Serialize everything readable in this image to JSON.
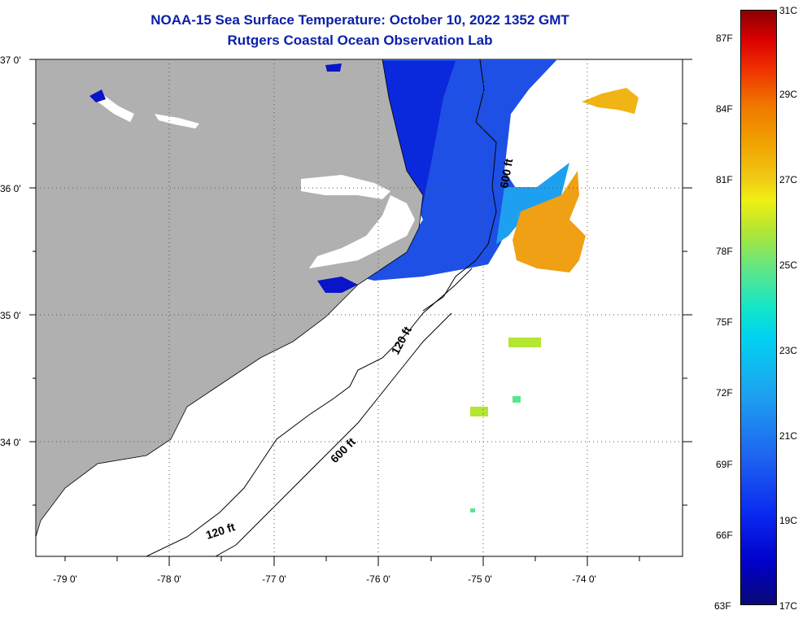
{
  "header": {
    "title": "NOAA-15 Sea Surface Temperature:  October 10, 2022 1352 GMT",
    "subtitle": "Rutgers Coastal Ocean Observation Lab"
  },
  "map": {
    "lat_labels": [
      "37 0'",
      "36 0'",
      "35 0'",
      "34 0'"
    ],
    "lon_labels": [
      "-79 0'",
      "-78 0'",
      "-77 0'",
      "-76 0'",
      "-75 0'",
      "-74 0'"
    ],
    "contour_labels": [
      "600 ft",
      "120 ft",
      "600 ft",
      "120 ft"
    ],
    "colors": {
      "land": "#b0b0b0",
      "cloud": "#ffffff",
      "shelf_water": "#1e50e6",
      "deep_blue": "#0a14c8",
      "warm": "#f0a014",
      "gridline": "#555555"
    }
  },
  "colorbar": {
    "fahrenheit": [
      "87F",
      "84F",
      "81F",
      "78F",
      "75F",
      "72F",
      "69F",
      "66F",
      "63F"
    ],
    "celsius": [
      "31C",
      "29C",
      "27C",
      "25C",
      "23C",
      "21C",
      "19C",
      "17C"
    ]
  }
}
